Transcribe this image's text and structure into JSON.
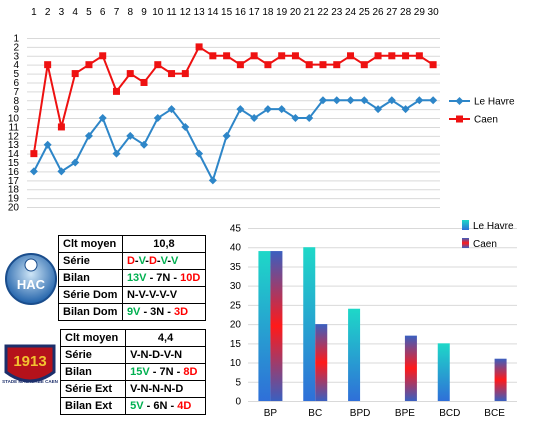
{
  "colors": {
    "havre": "#2e86c8",
    "caen": "#ee1111",
    "green": "#00b050",
    "red": "#ff0000",
    "grid": "#d9d9d9"
  },
  "chart_data": [
    {
      "type": "line",
      "x": [
        1,
        2,
        3,
        4,
        5,
        6,
        7,
        8,
        9,
        10,
        11,
        12,
        13,
        14,
        15,
        16,
        17,
        18,
        19,
        20,
        21,
        22,
        23,
        24,
        25,
        26,
        27,
        28,
        29,
        30
      ],
      "ylim": [
        20,
        1
      ],
      "y_ticks": [
        1,
        2,
        3,
        4,
        5,
        6,
        7,
        8,
        9,
        10,
        11,
        12,
        13,
        14,
        15,
        16,
        17,
        18,
        19,
        20
      ],
      "grid": true,
      "legend_position": "right",
      "series": [
        {
          "name": "Le Havre",
          "color": "#2e86c8",
          "marker": "diamond",
          "values": [
            16,
            13,
            16,
            15,
            12,
            10,
            14,
            12,
            13,
            10,
            9,
            11,
            14,
            17,
            12,
            9,
            10,
            9,
            9,
            10,
            10,
            8,
            8,
            8,
            8,
            9,
            8,
            9,
            8,
            8
          ]
        },
        {
          "name": "Caen",
          "color": "#ee1111",
          "marker": "square",
          "values": [
            14,
            4,
            11,
            5,
            4,
            3,
            7,
            5,
            6,
            4,
            5,
            5,
            2,
            3,
            3,
            4,
            3,
            4,
            3,
            3,
            4,
            4,
            4,
            3,
            4,
            3,
            3,
            3,
            3,
            4
          ]
        }
      ]
    },
    {
      "type": "bar",
      "categories": [
        "BP",
        "BC",
        "BPD",
        "BPE",
        "BCD",
        "BCE"
      ],
      "ylim": [
        0,
        45
      ],
      "y_ticks": [
        0,
        5,
        10,
        15,
        20,
        25,
        30,
        35,
        40,
        45
      ],
      "grid": true,
      "legend_position": "top-right",
      "series": [
        {
          "name": "Le Havre",
          "values": [
            39,
            40,
            24,
            0,
            15,
            0
          ]
        },
        {
          "name": "Caen",
          "values": [
            39,
            20,
            0,
            17,
            0,
            11
          ]
        }
      ]
    }
  ],
  "havre_table": {
    "rows": [
      {
        "label": "Clt moyen",
        "parts": [
          {
            "t": "10,8",
            "c": "k"
          }
        ]
      },
      {
        "label": "Série",
        "parts": [
          {
            "t": "D",
            "c": "r"
          },
          {
            "t": "-",
            "c": "k"
          },
          {
            "t": "V",
            "c": "g"
          },
          {
            "t": "-",
            "c": "k"
          },
          {
            "t": "D",
            "c": "r"
          },
          {
            "t": "-",
            "c": "k"
          },
          {
            "t": "V",
            "c": "g"
          },
          {
            "t": "-",
            "c": "k"
          },
          {
            "t": "V",
            "c": "g"
          }
        ]
      },
      {
        "label": "Bilan",
        "parts": [
          {
            "t": "13V",
            "c": "g"
          },
          {
            "t": " - 7N - ",
            "c": "k"
          },
          {
            "t": "10D",
            "c": "r"
          }
        ]
      },
      {
        "label": "Série Dom",
        "parts": [
          {
            "t": "N-V-V-V-V",
            "c": "k"
          }
        ]
      },
      {
        "label": "Bilan Dom",
        "parts": [
          {
            "t": "9V",
            "c": "g"
          },
          {
            "t": " - 3N - ",
            "c": "k"
          },
          {
            "t": "3D",
            "c": "r"
          }
        ]
      }
    ]
  },
  "caen_table": {
    "rows": [
      {
        "label": "Clt moyen",
        "parts": [
          {
            "t": "4,4",
            "c": "k"
          }
        ]
      },
      {
        "label": "Série",
        "parts": [
          {
            "t": "V-N-D-V-N",
            "c": "k"
          }
        ]
      },
      {
        "label": "Bilan",
        "parts": [
          {
            "t": "15V",
            "c": "g"
          },
          {
            "t": " - 7N - ",
            "c": "k"
          },
          {
            "t": "8D",
            "c": "r"
          }
        ]
      },
      {
        "label": "Série Ext",
        "parts": [
          {
            "t": "V-N-N-N-D",
            "c": "k"
          }
        ]
      },
      {
        "label": "Bilan Ext",
        "parts": [
          {
            "t": "5V",
            "c": "g"
          },
          {
            "t": " - 6N - ",
            "c": "k"
          },
          {
            "t": "4D",
            "c": "r"
          }
        ]
      }
    ]
  },
  "logos": {
    "havre": {
      "text": "HAC",
      "icon": "havre-crest-icon"
    },
    "caen": {
      "year": "1913",
      "text": "STADE MALHERBE CAEN",
      "icon": "caen-crest-icon"
    }
  }
}
